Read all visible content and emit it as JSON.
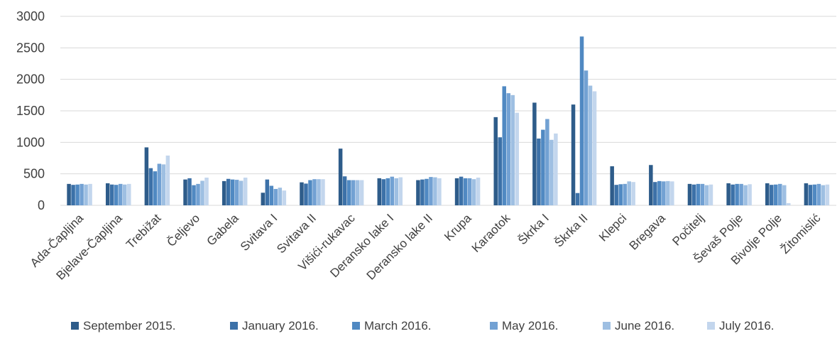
{
  "chart_data": {
    "type": "bar",
    "categories": [
      "Ada-Čapljina",
      "Bjelave-Čapljina",
      "Trebižat",
      "Čeljevo",
      "Gabela",
      "Svitava I",
      "Svitava II",
      "Višići-rukavac",
      "Deransko lake I",
      "Deransko lake II",
      "Krupa",
      "Karaotok",
      "Škrka I",
      "Škrka II",
      "Klepci",
      "Bregava",
      "Počitelj",
      "Ševaš Polje",
      "Bivolje Polje",
      "Žitomislić"
    ],
    "series": [
      {
        "name": "September 2015.",
        "color": "#2e5c8a",
        "values": [
          340,
          350,
          920,
          410,
          385,
          200,
          365,
          900,
          430,
          400,
          430,
          1400,
          1630,
          1600,
          620,
          640,
          340,
          350,
          350,
          350
        ]
      },
      {
        "name": "January 2016.",
        "color": "#3c71a8",
        "values": [
          325,
          330,
          590,
          430,
          420,
          410,
          345,
          460,
          415,
          410,
          455,
          1080,
          1060,
          195,
          325,
          370,
          330,
          330,
          325,
          325
        ]
      },
      {
        "name": "March 2016.",
        "color": "#5089c2",
        "values": [
          330,
          325,
          540,
          320,
          410,
          310,
          400,
          400,
          430,
          420,
          430,
          1890,
          1200,
          2680,
          335,
          385,
          340,
          340,
          330,
          330
        ]
      },
      {
        "name": "May 2016.",
        "color": "#72a1d3",
        "values": [
          340,
          340,
          660,
          340,
          405,
          260,
          415,
          400,
          455,
          450,
          430,
          1780,
          1370,
          2140,
          340,
          380,
          340,
          340,
          340,
          340
        ]
      },
      {
        "name": "June 2016.",
        "color": "#9ebfe2",
        "values": [
          330,
          330,
          650,
          390,
          390,
          280,
          415,
          400,
          430,
          445,
          415,
          1750,
          1040,
          1900,
          380,
          385,
          320,
          320,
          320,
          320
        ]
      },
      {
        "name": "July 2016.",
        "color": "#c3d6ed",
        "values": [
          340,
          340,
          790,
          440,
          440,
          235,
          415,
          400,
          445,
          430,
          440,
          1470,
          1140,
          1810,
          370,
          380,
          330,
          335,
          35,
          330
        ]
      }
    ],
    "yticks": [
      0,
      500,
      1000,
      1500,
      2000,
      2500,
      3000
    ],
    "ylim": [
      0,
      3000
    ],
    "grid": true,
    "legend_position": "bottom"
  }
}
